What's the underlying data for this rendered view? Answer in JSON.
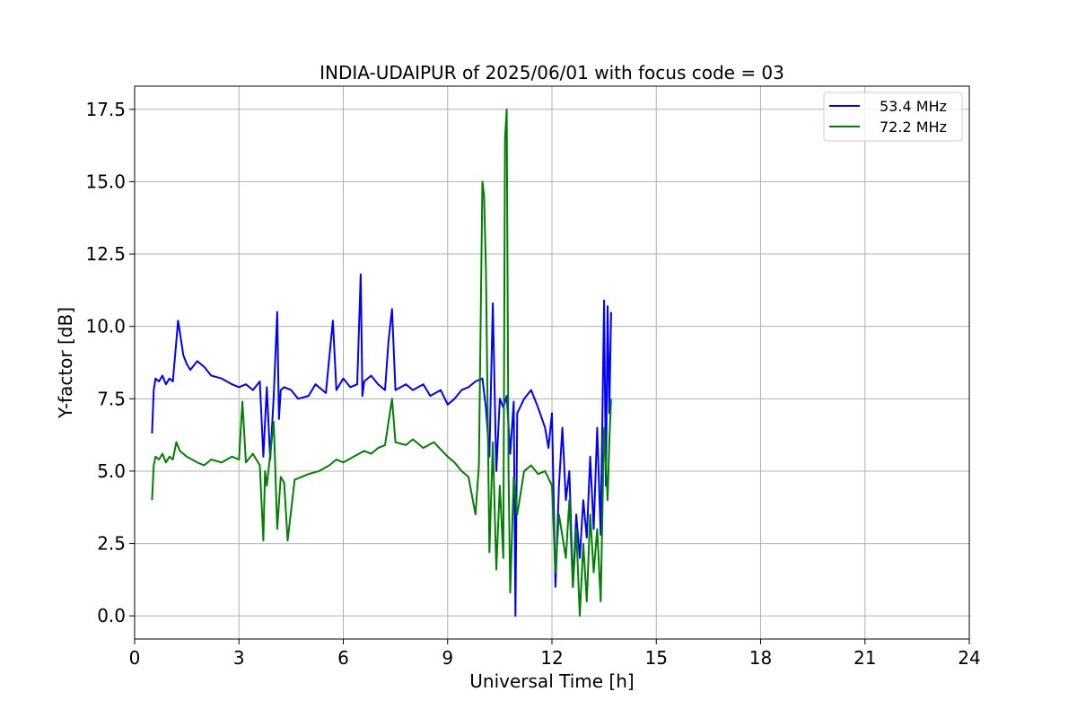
{
  "chart_data": {
    "type": "line",
    "title": "INDIA-UDAIPUR of 2025/06/01 with focus code = 03",
    "xlabel": "Universal Time [h]",
    "ylabel": "Y-factor [dB]",
    "xlim": [
      0,
      24
    ],
    "ylim": [
      -0.8,
      18.3
    ],
    "xticks": [
      0,
      3,
      6,
      9,
      12,
      15,
      18,
      21,
      24
    ],
    "xtick_labels": [
      "0",
      "3",
      "6",
      "9",
      "12",
      "15",
      "18",
      "21",
      "24"
    ],
    "yticks": [
      0.0,
      2.5,
      5.0,
      7.5,
      10.0,
      12.5,
      15.0,
      17.5
    ],
    "ytick_labels": [
      "0.0",
      "2.5",
      "5.0",
      "7.5",
      "10.0",
      "12.5",
      "15.0",
      "17.5"
    ],
    "grid": true,
    "legend_position": "top-right",
    "series": [
      {
        "name": "53.4 MHz",
        "color": "#0000ff",
        "x": [
          0.5,
          0.55,
          0.6,
          0.7,
          0.8,
          0.9,
          1.0,
          1.1,
          1.2,
          1.25,
          1.3,
          1.4,
          1.5,
          1.6,
          1.8,
          2.0,
          2.2,
          2.5,
          2.8,
          3.0,
          3.2,
          3.4,
          3.6,
          3.7,
          3.8,
          3.9,
          4.0,
          4.1,
          4.15,
          4.2,
          4.3,
          4.5,
          4.7,
          5.0,
          5.2,
          5.5,
          5.7,
          5.8,
          6.0,
          6.2,
          6.4,
          6.5,
          6.55,
          6.6,
          6.8,
          7.0,
          7.2,
          7.3,
          7.4,
          7.5,
          7.8,
          8.0,
          8.3,
          8.5,
          8.8,
          9.0,
          9.2,
          9.4,
          9.6,
          9.8,
          10.0,
          10.1,
          10.2,
          10.3,
          10.4,
          10.5,
          10.6,
          10.7,
          10.8,
          10.9,
          10.95,
          11.0,
          11.2,
          11.4,
          11.6,
          11.8,
          11.9,
          12.0,
          12.1,
          12.2,
          12.3,
          12.4,
          12.5,
          12.6,
          12.7,
          12.8,
          12.9,
          13.0,
          13.1,
          13.2,
          13.3,
          13.4,
          13.5,
          13.55,
          13.6,
          13.65,
          13.7
        ],
        "values": [
          6.3,
          7.8,
          8.2,
          8.1,
          8.3,
          8.0,
          8.2,
          8.1,
          9.5,
          10.2,
          9.8,
          9.0,
          8.7,
          8.5,
          8.8,
          8.6,
          8.3,
          8.2,
          8.0,
          7.9,
          8.0,
          7.8,
          8.1,
          5.5,
          7.9,
          5.4,
          7.6,
          10.5,
          6.8,
          7.8,
          7.9,
          7.8,
          7.5,
          7.6,
          8.0,
          7.7,
          10.2,
          7.8,
          8.2,
          7.9,
          8.0,
          11.8,
          7.6,
          8.1,
          8.3,
          8.0,
          7.8,
          9.5,
          10.6,
          7.8,
          8.0,
          7.8,
          8.0,
          7.6,
          7.8,
          7.3,
          7.5,
          7.8,
          7.9,
          8.1,
          8.2,
          7.2,
          5.5,
          10.8,
          5.0,
          7.5,
          7.2,
          7.6,
          5.6,
          7.4,
          0.0,
          7.0,
          7.5,
          7.8,
          7.2,
          6.5,
          5.8,
          7.0,
          1.0,
          4.5,
          6.5,
          4.0,
          5.0,
          1.0,
          3.5,
          2.0,
          4.0,
          2.7,
          5.5,
          3.0,
          6.5,
          2.8,
          10.9,
          4.5,
          10.7,
          7.0,
          10.5
        ]
      },
      {
        "name": "72.2 MHz",
        "color": "#008000",
        "x": [
          0.5,
          0.55,
          0.6,
          0.7,
          0.8,
          0.9,
          1.0,
          1.1,
          1.2,
          1.3,
          1.5,
          1.8,
          2.0,
          2.2,
          2.5,
          2.8,
          3.0,
          3.1,
          3.2,
          3.4,
          3.6,
          3.7,
          3.75,
          3.8,
          4.0,
          4.1,
          4.2,
          4.3,
          4.4,
          4.6,
          5.0,
          5.3,
          5.6,
          5.8,
          6.0,
          6.3,
          6.6,
          6.8,
          7.0,
          7.2,
          7.4,
          7.5,
          7.8,
          8.0,
          8.3,
          8.6,
          9.0,
          9.2,
          9.4,
          9.6,
          9.8,
          9.9,
          10.0,
          10.05,
          10.1,
          10.2,
          10.3,
          10.4,
          10.5,
          10.6,
          10.65,
          10.7,
          10.75,
          10.8,
          10.9,
          11.0,
          11.2,
          11.4,
          11.6,
          11.8,
          12.0,
          12.1,
          12.2,
          12.4,
          12.5,
          12.6,
          12.7,
          12.8,
          12.9,
          13.0,
          13.1,
          13.2,
          13.3,
          13.4,
          13.5,
          13.6,
          13.65,
          13.7
        ],
        "values": [
          4.0,
          5.2,
          5.5,
          5.4,
          5.6,
          5.3,
          5.5,
          5.4,
          6.0,
          5.7,
          5.5,
          5.3,
          5.2,
          5.4,
          5.3,
          5.5,
          5.4,
          7.4,
          5.3,
          5.6,
          5.2,
          2.6,
          5.0,
          4.5,
          6.7,
          3.0,
          4.8,
          4.6,
          2.6,
          4.7,
          4.9,
          5.0,
          5.2,
          5.4,
          5.3,
          5.5,
          5.7,
          5.6,
          5.8,
          5.9,
          7.5,
          6.0,
          5.9,
          6.1,
          5.8,
          6.0,
          5.5,
          5.3,
          5.0,
          4.8,
          3.5,
          5.2,
          15.0,
          14.5,
          12.0,
          2.2,
          6.0,
          1.6,
          4.5,
          2.0,
          16.5,
          17.5,
          5.0,
          0.8,
          4.8,
          3.5,
          5.0,
          5.2,
          4.9,
          5.0,
          4.5,
          1.5,
          3.5,
          2.0,
          4.0,
          1.0,
          3.0,
          0.0,
          2.5,
          0.5,
          3.5,
          1.5,
          3.0,
          0.5,
          6.5,
          4.0,
          6.0,
          7.5
        ]
      }
    ]
  }
}
